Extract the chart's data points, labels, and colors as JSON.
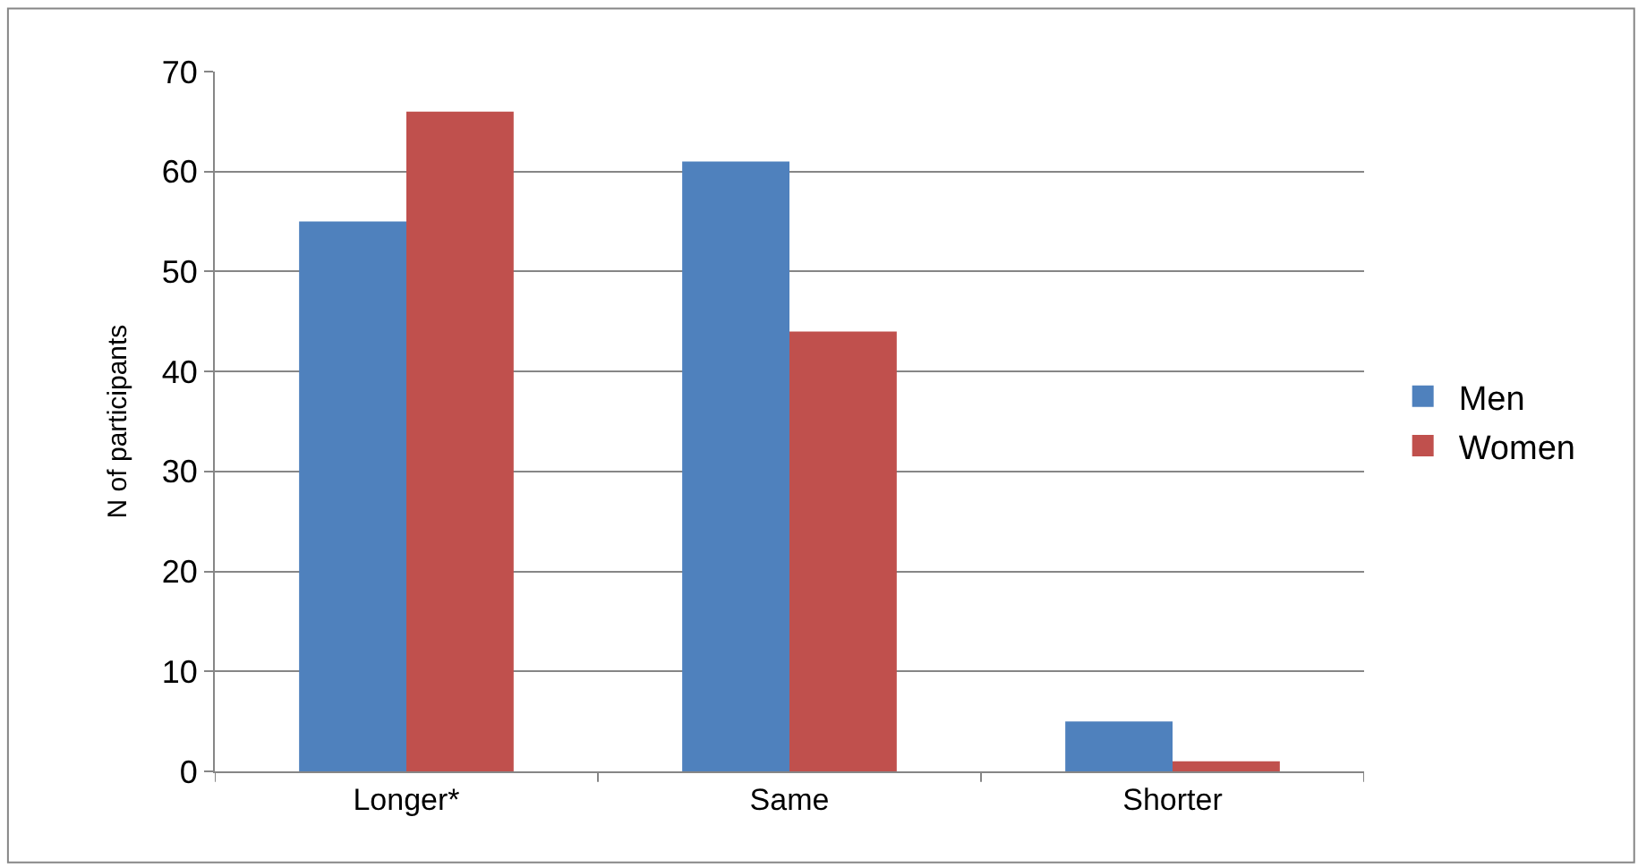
{
  "chart_data": {
    "type": "bar",
    "ylabel": "N of participants",
    "categories": [
      "Longer*",
      "Same",
      "Shorter"
    ],
    "series": [
      {
        "name": "Men",
        "color": "#4f81bd",
        "values": [
          55,
          61,
          5
        ]
      },
      {
        "name": "Women",
        "color": "#c0504d",
        "values": [
          66,
          44,
          1
        ]
      }
    ],
    "ylim": [
      0,
      70
    ],
    "yticks": [
      0,
      10,
      20,
      30,
      40,
      50,
      60,
      70
    ],
    "grid": "y",
    "legend": "right"
  }
}
